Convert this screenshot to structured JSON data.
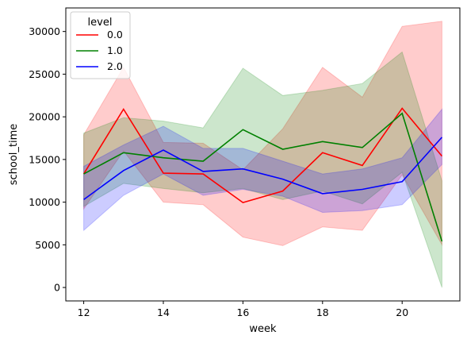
{
  "chart_data": {
    "type": "line",
    "xlabel": "week",
    "ylabel": "school_time",
    "xlim": [
      11.55,
      21.45
    ],
    "ylim": [
      -1575,
      32760
    ],
    "xticks": [
      12,
      14,
      16,
      18,
      20
    ],
    "yticks": [
      0,
      5000,
      10000,
      15000,
      20000,
      25000,
      30000
    ],
    "x": [
      12,
      13,
      14,
      15,
      16,
      17,
      18,
      19,
      20,
      21
    ],
    "legend": {
      "title": "level",
      "placement": "top-left"
    },
    "series": [
      {
        "name": "0.0",
        "color": "#ff0000",
        "values": [
          13300,
          20900,
          13400,
          13300,
          9950,
          11300,
          15800,
          14300,
          21000,
          15400
        ],
        "ci_low": [
          9200,
          16000,
          10000,
          9700,
          5900,
          4900,
          7100,
          6700,
          13200,
          5000
        ],
        "ci_high": [
          17900,
          25800,
          17000,
          16900,
          13800,
          18600,
          25800,
          22300,
          30600,
          31200
        ]
      },
      {
        "name": "1.0",
        "color": "#008000",
        "values": [
          13300,
          15800,
          15200,
          14800,
          18500,
          16200,
          17100,
          16400,
          20400,
          5400
        ],
        "ci_low": [
          9500,
          12200,
          11600,
          11100,
          11600,
          10300,
          11300,
          9800,
          13500,
          0
        ],
        "ci_high": [
          18100,
          19900,
          19500,
          18700,
          25700,
          22500,
          23100,
          23900,
          27600,
          12500
        ]
      },
      {
        "name": "2.0",
        "color": "#0000ff",
        "values": [
          10300,
          13700,
          16100,
          13600,
          13900,
          12700,
          11000,
          11500,
          12400,
          17600
        ],
        "ci_low": [
          6700,
          10800,
          13300,
          10800,
          11500,
          10700,
          8800,
          9000,
          9700,
          14400
        ],
        "ci_high": [
          14200,
          16700,
          18900,
          16300,
          16300,
          14800,
          13300,
          13900,
          15200,
          20900
        ]
      }
    ]
  }
}
